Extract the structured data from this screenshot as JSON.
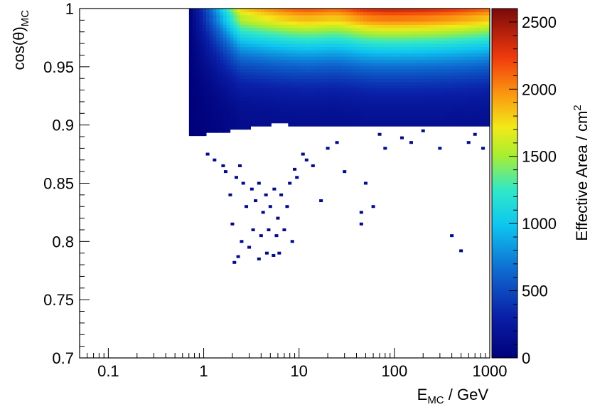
{
  "chart_data": {
    "type": "heatmap",
    "title": "",
    "xlabel": {
      "main": "E",
      "sub": "MC",
      "unit": " / GeV"
    },
    "ylabel": {
      "main": "cos(θ)",
      "sub": "MC"
    },
    "zlabel": {
      "main": "Effective Area / cm",
      "sup": "2"
    },
    "x_scale": "log",
    "xlim": [
      0.05,
      1000
    ],
    "ylim": [
      0.7,
      1.0
    ],
    "zlim": [
      0,
      2600
    ],
    "x_ticks": [
      {
        "value": 0.1,
        "label": "0.1"
      },
      {
        "value": 1,
        "label": "1"
      },
      {
        "value": 10,
        "label": "10"
      },
      {
        "value": 100,
        "label": "100"
      },
      {
        "value": 1000,
        "label": "1000"
      }
    ],
    "y_ticks": [
      {
        "value": 0.7,
        "label": "0.7"
      },
      {
        "value": 0.75,
        "label": "0.75"
      },
      {
        "value": 0.8,
        "label": "0.8"
      },
      {
        "value": 0.85,
        "label": "0.85"
      },
      {
        "value": 0.9,
        "label": "0.9"
      },
      {
        "value": 0.95,
        "label": "0.95"
      },
      {
        "value": 1.0,
        "label": "1"
      }
    ],
    "z_ticks": [
      {
        "value": 0,
        "label": "0"
      },
      {
        "value": 500,
        "label": "500"
      },
      {
        "value": 1000,
        "label": "1000"
      },
      {
        "value": 1500,
        "label": "1500"
      },
      {
        "value": 2000,
        "label": "2000"
      },
      {
        "value": 2500,
        "label": "2500"
      }
    ],
    "colormap": "rainbow (dark blue → cyan → yellow → dark red)",
    "grid": false,
    "regions": {
      "energy_threshold_gev": 0.7,
      "dense_lower_cos_at_threshold": 0.89,
      "dense_lower_cos_at_high_energy": 0.9,
      "peak_cos_band": [
        0.985,
        1.0
      ],
      "peak_energy_range_gev": [
        20,
        500
      ],
      "peak_value_cm2": 2550,
      "sparse_lowest_cos": 0.782
    },
    "sparse_bins": [
      [
        1.7,
        0.86
      ],
      [
        2.2,
        0.855
      ],
      [
        2.6,
        0.85
      ],
      [
        3.2,
        0.845
      ],
      [
        3.8,
        0.85
      ],
      [
        4.5,
        0.84
      ],
      [
        5.5,
        0.845
      ],
      [
        6.5,
        0.84
      ],
      [
        8.0,
        0.85
      ],
      [
        9.5,
        0.855
      ],
      [
        1.9,
        0.84
      ],
      [
        2.8,
        0.83
      ],
      [
        3.5,
        0.835
      ],
      [
        4.2,
        0.825
      ],
      [
        5.0,
        0.83
      ],
      [
        6.0,
        0.82
      ],
      [
        7.5,
        0.83
      ],
      [
        2.0,
        0.815
      ],
      [
        2.5,
        0.8
      ],
      [
        3.3,
        0.81
      ],
      [
        4.0,
        0.805
      ],
      [
        4.8,
        0.81
      ],
      [
        5.8,
        0.805
      ],
      [
        7.0,
        0.81
      ],
      [
        8.5,
        0.8
      ],
      [
        3.0,
        0.795
      ],
      [
        4.6,
        0.79
      ],
      [
        5.4,
        0.788
      ],
      [
        6.2,
        0.79
      ],
      [
        2.3,
        0.787
      ],
      [
        2.1,
        0.782
      ],
      [
        3.8,
        0.785
      ],
      [
        12,
        0.87
      ],
      [
        14,
        0.865
      ],
      [
        30,
        0.86
      ],
      [
        50,
        0.85
      ],
      [
        17,
        0.835
      ],
      [
        45,
        0.825
      ],
      [
        60,
        0.83
      ],
      [
        45,
        0.815
      ],
      [
        400,
        0.805
      ],
      [
        500,
        0.792
      ],
      [
        80,
        0.88
      ],
      [
        150,
        0.885
      ],
      [
        300,
        0.88
      ],
      [
        600,
        0.885
      ],
      [
        1.1,
        0.875
      ],
      [
        1.3,
        0.87
      ],
      [
        1.6,
        0.865
      ],
      [
        2.4,
        0.865
      ],
      [
        9,
        0.862
      ],
      [
        11,
        0.875
      ],
      [
        20,
        0.88
      ],
      [
        25,
        0.885
      ],
      [
        70,
        0.892
      ],
      [
        120,
        0.889
      ],
      [
        200,
        0.895
      ],
      [
        700,
        0.892
      ],
      [
        850,
        0.88
      ]
    ]
  }
}
